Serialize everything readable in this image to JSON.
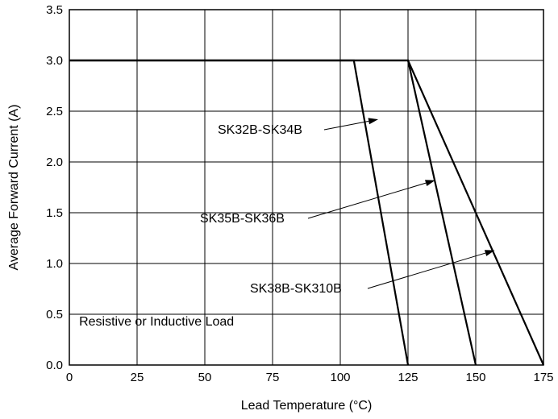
{
  "chart_data": {
    "type": "line",
    "title": "",
    "xlabel": "Lead Temperature (°C)",
    "ylabel": "Average Forward Current (A)",
    "xlim": [
      0,
      175
    ],
    "ylim": [
      0,
      3.5
    ],
    "xticks": [
      0,
      25,
      50,
      75,
      100,
      125,
      150,
      175
    ],
    "yticks": [
      0.0,
      0.5,
      1.0,
      1.5,
      2.0,
      2.5,
      3.0,
      3.5
    ],
    "xtick_labels": [
      "0",
      "25",
      "50",
      "75",
      "100",
      "125",
      "150",
      "175"
    ],
    "ytick_labels": [
      "0.0",
      "0.5",
      "1.0",
      "1.5",
      "2.0",
      "2.5",
      "3.0",
      "3.5"
    ],
    "grid": true,
    "legend": "none",
    "series": [
      {
        "name": "SK32B-SK34B",
        "points": [
          [
            0,
            3.0
          ],
          [
            105,
            3.0
          ],
          [
            125,
            0.0
          ]
        ],
        "arrow_to": [
          114,
          2.42
        ]
      },
      {
        "name": "SK35B-SK36B",
        "points": [
          [
            0,
            3.0
          ],
          [
            125,
            3.0
          ],
          [
            150,
            0.0
          ]
        ],
        "arrow_to": [
          135,
          1.82
        ]
      },
      {
        "name": "SK38B-SK310B",
        "points": [
          [
            0,
            3.0
          ],
          [
            125,
            3.0
          ],
          [
            175,
            0.0
          ]
        ],
        "arrow_to": [
          157,
          1.13
        ]
      }
    ],
    "annotations": [
      {
        "text": "Resistive or Inductive Load",
        "x": 3,
        "y": 0.38
      }
    ]
  }
}
